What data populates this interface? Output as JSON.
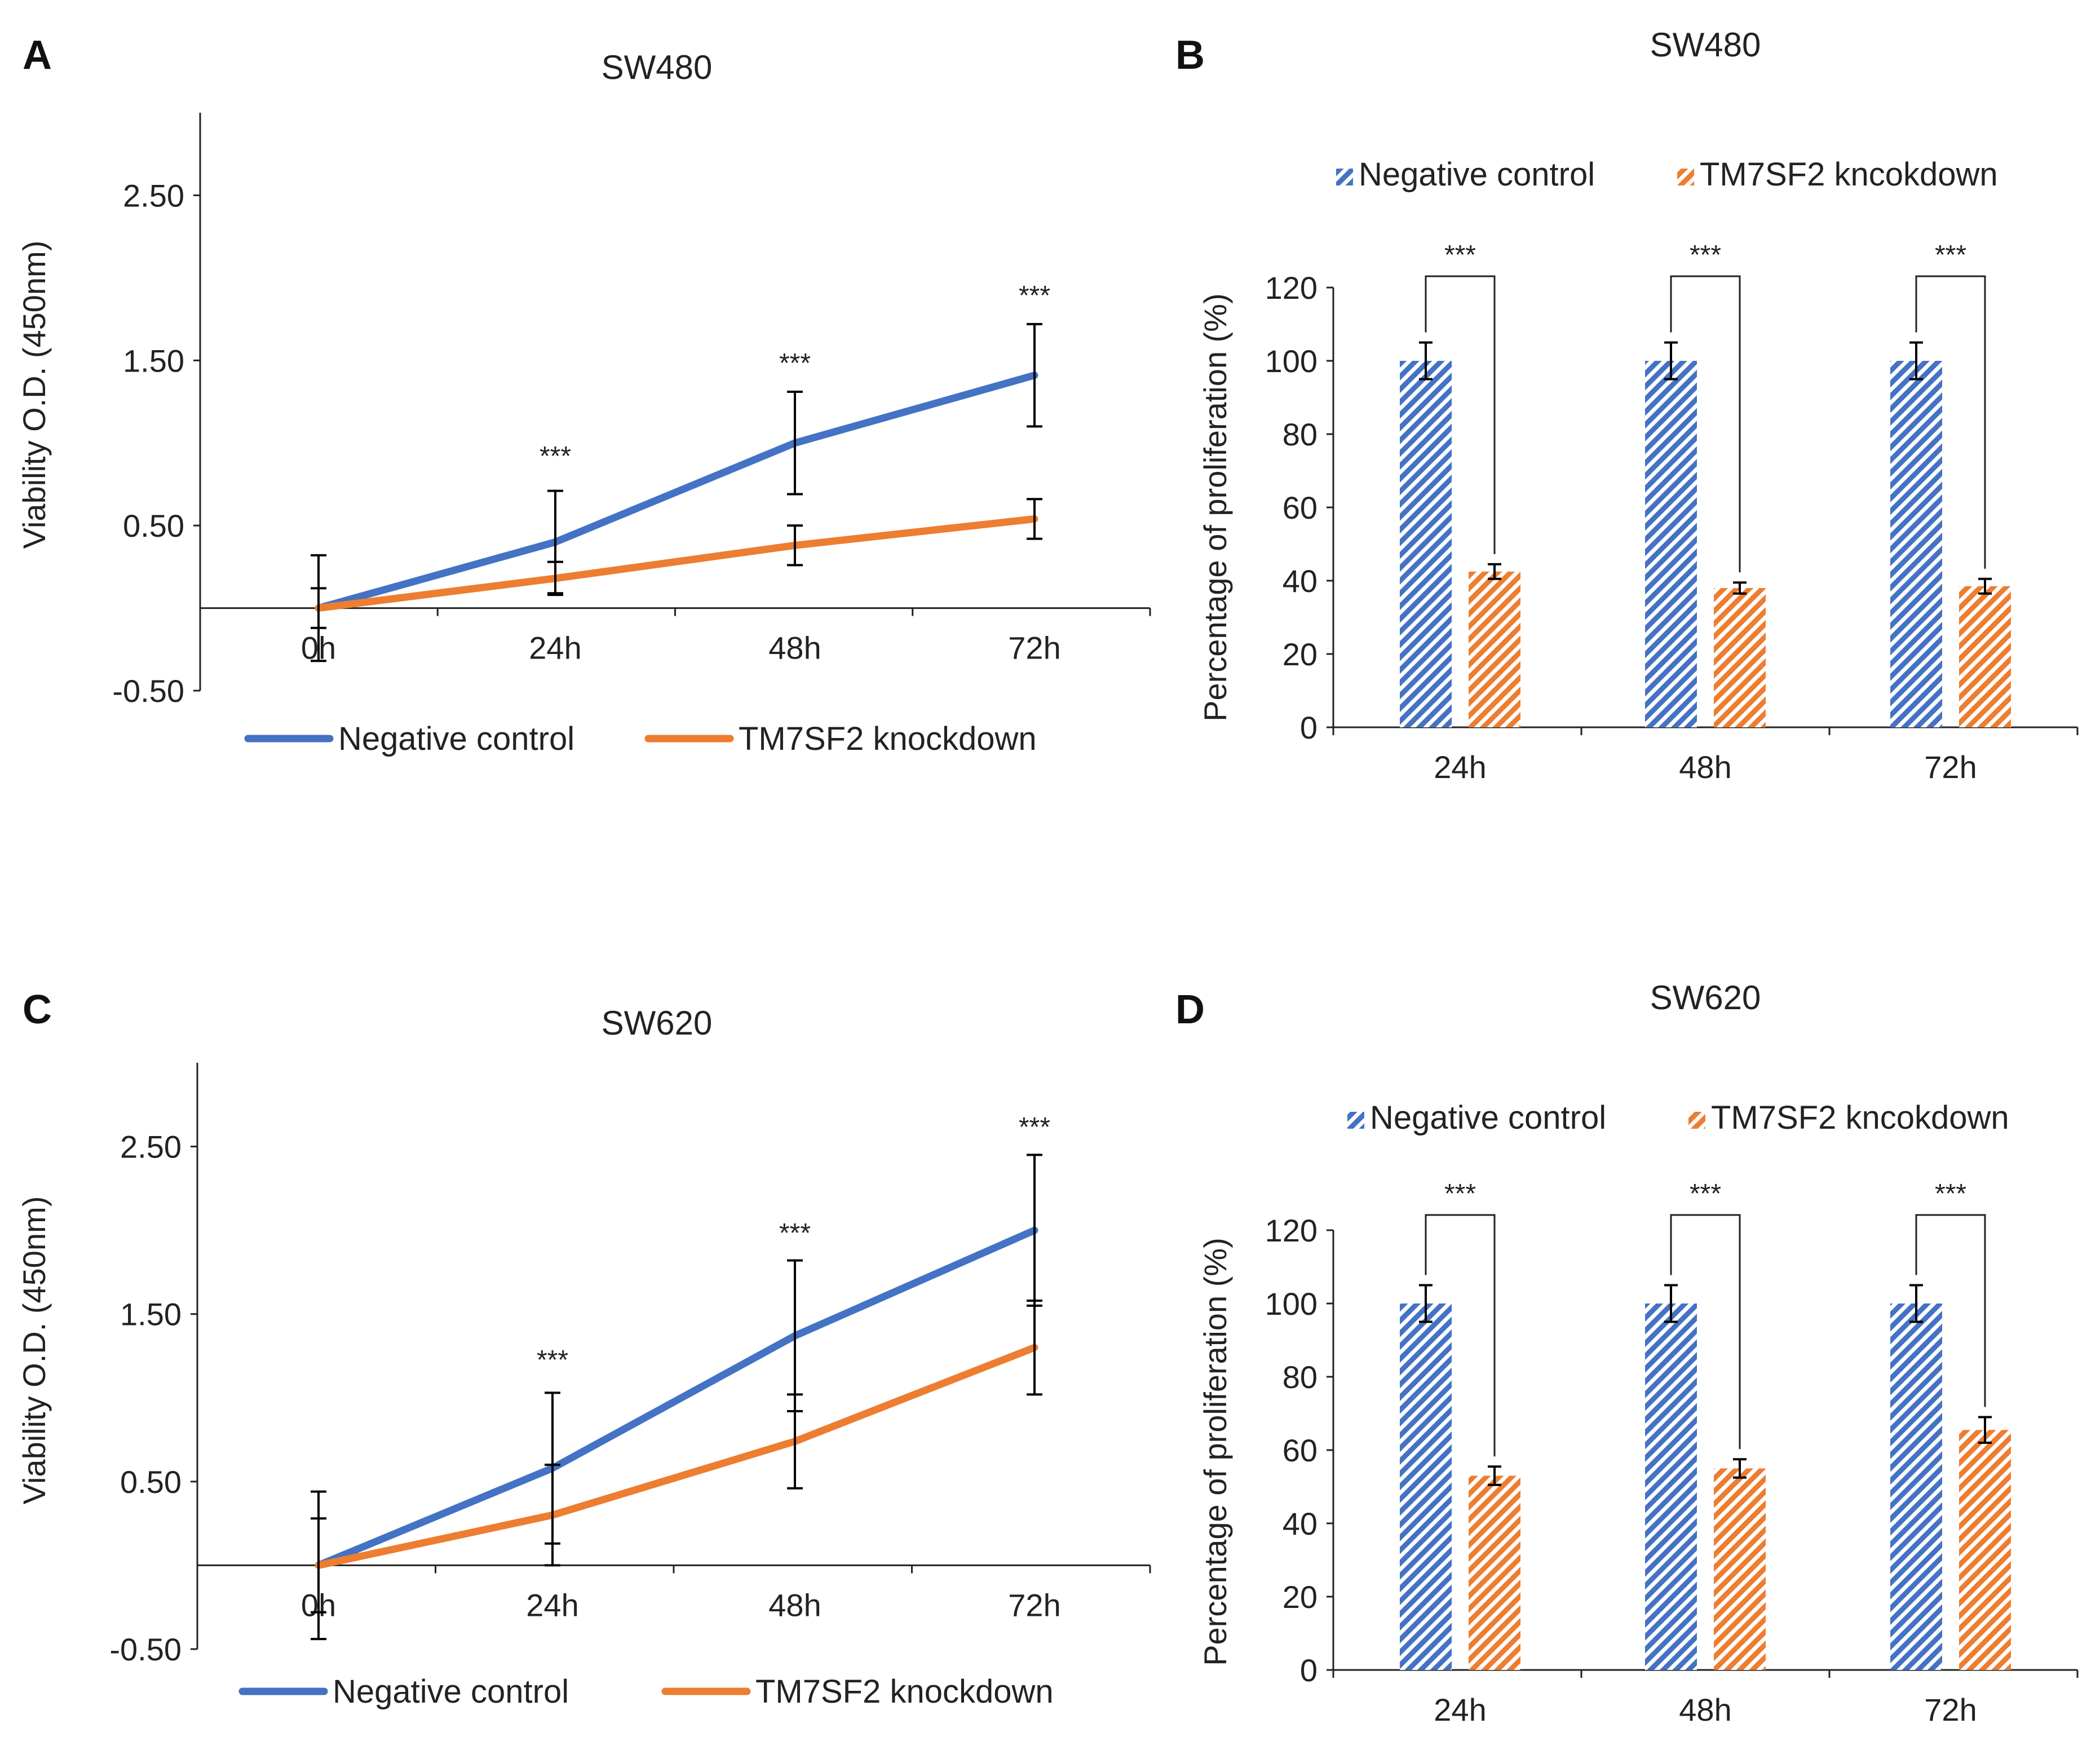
{
  "colors": {
    "control": "#4472C4",
    "knockdown": "#ED7D31"
  },
  "chart_data": [
    {
      "id": "A",
      "panel_label": "A",
      "type": "line",
      "title": "SW480",
      "ylabel": "Viability O.D. (450nm)",
      "xlabel": "",
      "categories": [
        "0h",
        "24h",
        "48h",
        "72h"
      ],
      "ylim": [
        -0.5,
        3.0
      ],
      "yticks": [
        -0.5,
        0.5,
        1.5,
        2.5
      ],
      "ytick_labels": [
        "-0.50",
        "0.50",
        "1.50",
        "2.50"
      ],
      "series": [
        {
          "name": "Negative control",
          "color": "#4472C4",
          "values": [
            0.0,
            0.4,
            1.0,
            1.41
          ],
          "errors": [
            0.32,
            0.31,
            0.31,
            0.31
          ]
        },
        {
          "name": "TM7SF2 knockdown",
          "color": "#ED7D31",
          "values": [
            0.0,
            0.18,
            0.38,
            0.54
          ],
          "errors": [
            0.12,
            0.1,
            0.12,
            0.12
          ]
        }
      ],
      "significance": [
        "",
        "***",
        "***",
        "***"
      ],
      "legend": "bottom"
    },
    {
      "id": "B",
      "panel_label": "B",
      "type": "bar",
      "title": "SW480",
      "ylabel": "Percentage of proliferation (%)",
      "xlabel": "",
      "categories": [
        "24h",
        "48h",
        "72h"
      ],
      "ylim": [
        0,
        120
      ],
      "yticks": [
        0,
        20,
        40,
        60,
        80,
        100,
        120
      ],
      "series": [
        {
          "name": "Negative control",
          "color": "#4472C4",
          "values": [
            100,
            100,
            100
          ],
          "errors": [
            5,
            5,
            5
          ]
        },
        {
          "name": "TM7SF2 kncokdown",
          "color": "#ED7D31",
          "values": [
            42.5,
            38,
            38.5
          ],
          "errors": [
            2,
            1.5,
            2
          ]
        }
      ],
      "significance": [
        "***",
        "***",
        "***"
      ],
      "legend": "top"
    },
    {
      "id": "C",
      "panel_label": "C",
      "type": "line",
      "title": "SW620",
      "ylabel": "Viability O.D. (450nm)",
      "xlabel": "",
      "categories": [
        "0h",
        "24h",
        "48h",
        "72h"
      ],
      "ylim": [
        -0.5,
        3.0
      ],
      "yticks": [
        -0.5,
        0.5,
        1.5,
        2.5
      ],
      "ytick_labels": [
        "-0.50",
        "0.50",
        "1.50",
        "2.50"
      ],
      "series": [
        {
          "name": "Negative control",
          "color": "#4472C4",
          "values": [
            0.0,
            0.58,
            1.37,
            2.0
          ],
          "errors": [
            0.44,
            0.45,
            0.45,
            0.45
          ]
        },
        {
          "name": "TM7SF2 knockdown",
          "color": "#ED7D31",
          "values": [
            0.0,
            0.3,
            0.74,
            1.3
          ],
          "errors": [
            0.28,
            0.3,
            0.28,
            0.28
          ]
        }
      ],
      "significance": [
        "",
        "***",
        "***",
        "***"
      ],
      "legend": "bottom"
    },
    {
      "id": "D",
      "panel_label": "D",
      "type": "bar",
      "title": "SW620",
      "ylabel": "Percentage of proliferation (%)",
      "xlabel": "",
      "categories": [
        "24h",
        "48h",
        "72h"
      ],
      "ylim": [
        0,
        120
      ],
      "yticks": [
        0,
        20,
        40,
        60,
        80,
        100,
        120
      ],
      "series": [
        {
          "name": "Negative control",
          "color": "#4472C4",
          "values": [
            100,
            100,
            100
          ],
          "errors": [
            5,
            5,
            5
          ]
        },
        {
          "name": "TM7SF2 kncokdown",
          "color": "#ED7D31",
          "values": [
            53,
            55,
            65.5
          ],
          "errors": [
            2.5,
            2.5,
            3.5
          ]
        }
      ],
      "significance": [
        "***",
        "***",
        "***"
      ],
      "legend": "top"
    }
  ]
}
